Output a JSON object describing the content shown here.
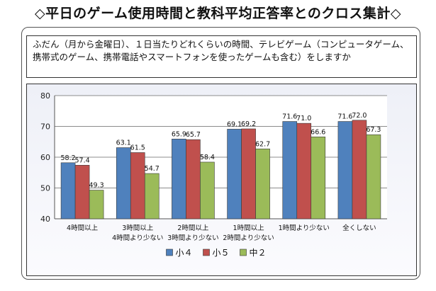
{
  "title": "◇平日のゲーム使用時間と教科平均正答率とのクロス集計◇",
  "question": "ふだん（月から金曜日）、１日当たりどれくらいの時間、テレビゲーム（コンピュータゲーム、携帯式のゲーム、携帯電話やスマートフォンを使ったゲームも含む）をしますか",
  "colors": {
    "series1": "#4f81bd",
    "series2": "#c0504d",
    "series3": "#9bbb59"
  },
  "chart_data": {
    "type": "bar",
    "title": "",
    "xlabel": "",
    "ylabel": "",
    "ylim": [
      40,
      80
    ],
    "yticks": [
      40,
      50,
      60,
      70,
      80
    ],
    "grid": true,
    "legend": "bottom",
    "categories": [
      [
        "4時間以上"
      ],
      [
        "3時間以上",
        "4時間より少ない"
      ],
      [
        "2時間以上",
        "3時間より少ない"
      ],
      [
        "1時間以上",
        "2時間より少ない"
      ],
      [
        "1時間より少ない"
      ],
      [
        "全くしない"
      ]
    ],
    "series": [
      {
        "name": "小４",
        "values": [
          58.2,
          63.1,
          65.9,
          69.1,
          71.6,
          71.6
        ]
      },
      {
        "name": "小５",
        "values": [
          57.4,
          61.5,
          65.7,
          69.2,
          71.0,
          72.0
        ]
      },
      {
        "name": "中２",
        "values": [
          49.3,
          54.7,
          58.4,
          62.7,
          66.6,
          67.3
        ]
      }
    ]
  }
}
